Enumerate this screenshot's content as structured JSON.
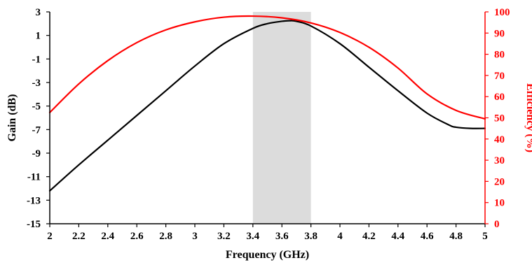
{
  "chart_data": {
    "type": "line",
    "xlabel": "Frequency (GHz)",
    "ylabel_left": "Gain (dB)",
    "ylabel_right": "Efficiency (%)",
    "xlim": [
      2,
      5
    ],
    "ylim_left": [
      -15,
      3
    ],
    "ylim_right": [
      0,
      100
    ],
    "x_ticks": [
      "2",
      "2.2",
      "2.4",
      "2.6",
      "2.8",
      "3",
      "3.2",
      "3.4",
      "3.6",
      "3.8",
      "4",
      "4.2",
      "4.4",
      "4.6",
      "4.8",
      "5"
    ],
    "y_left_ticks": [
      "-15",
      "-13",
      "-11",
      "-9",
      "-7",
      "-5",
      "-3",
      "-1",
      "1",
      "3"
    ],
    "y_right_ticks": [
      "0",
      "10",
      "20",
      "30",
      "40",
      "50",
      "60",
      "70",
      "80",
      "90",
      "100"
    ],
    "highlight_band": [
      3.4,
      3.8
    ],
    "grid": false,
    "series": [
      {
        "axis": "left",
        "color": "#000000",
        "x": [
          2.0,
          2.2,
          2.4,
          2.6,
          2.8,
          3.0,
          3.2,
          3.4,
          3.5,
          3.6,
          3.65,
          3.7,
          3.8,
          4.0,
          4.2,
          4.4,
          4.6,
          4.75,
          4.8,
          4.9,
          5.0
        ],
        "y": [
          -12.2,
          -10.0,
          -7.9,
          -5.8,
          -3.7,
          -1.6,
          0.3,
          1.6,
          2.0,
          2.2,
          2.25,
          2.2,
          1.8,
          0.3,
          -1.7,
          -3.7,
          -5.6,
          -6.6,
          -6.8,
          -6.9,
          -6.9
        ]
      },
      {
        "axis": "right",
        "color": "#ff0000",
        "x": [
          2.0,
          2.2,
          2.4,
          2.6,
          2.8,
          3.0,
          3.2,
          3.4,
          3.6,
          3.8,
          4.0,
          4.2,
          4.4,
          4.6,
          4.8,
          5.0
        ],
        "y": [
          52.5,
          66.0,
          77.0,
          85.5,
          91.5,
          95.3,
          97.5,
          98.0,
          97.2,
          94.8,
          90.3,
          83.3,
          73.5,
          61.3,
          53.5,
          49.5
        ]
      }
    ]
  },
  "colors": {
    "axis": "#000000",
    "right_axis": "#ff0000",
    "band": "#dcdcdc"
  }
}
